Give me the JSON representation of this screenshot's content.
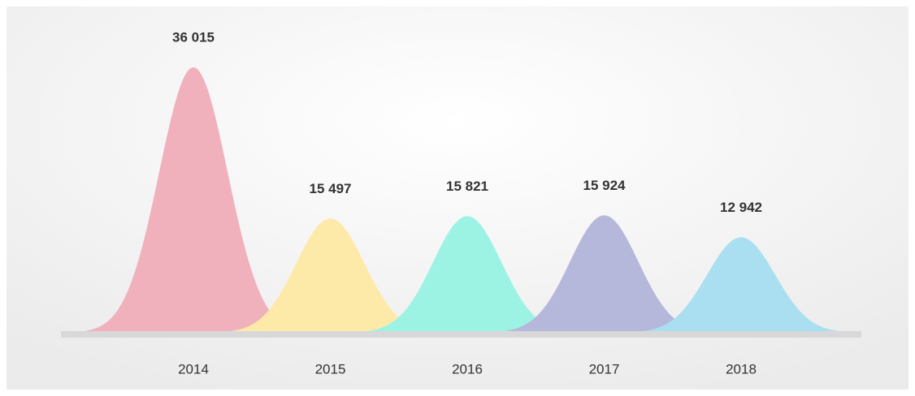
{
  "chart_data": {
    "type": "peak",
    "categories": [
      "2014",
      "2015",
      "2016",
      "2017",
      "2018"
    ],
    "values": [
      36015,
      15497,
      15821,
      15924,
      12942
    ],
    "value_labels": [
      "36 015",
      "15 497",
      "15 821",
      "15 924",
      "12 942"
    ],
    "colors": [
      "#f0b1bd",
      "#fde9a8",
      "#9df3e3",
      "#b5b8db",
      "#a9dff0"
    ]
  }
}
